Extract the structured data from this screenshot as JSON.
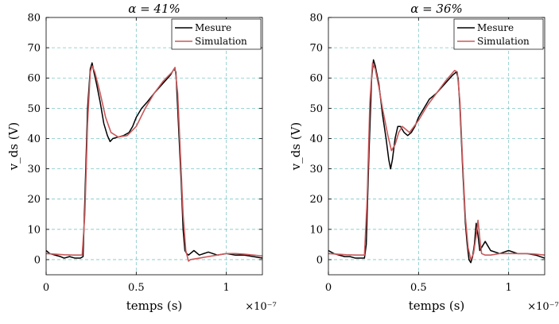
{
  "chart_data": [
    {
      "type": "line",
      "title": "α = 41%",
      "xlabel": "temps (s)",
      "ylabel": "v_ds (V)",
      "x_multiplier_label": "×10⁻⁷",
      "xlim": [
        0,
        1.2
      ],
      "ylim": [
        -5,
        80
      ],
      "xticks": [
        "0",
        "0.5",
        "1"
      ],
      "yticks": [
        "0",
        "10",
        "20",
        "30",
        "40",
        "50",
        "60",
        "70",
        "80"
      ],
      "grid": true,
      "legend": "top-right",
      "series": [
        {
          "name": "Mesure",
          "color": "#000000",
          "x": [
            0,
            0.02,
            0.05,
            0.08,
            0.1,
            0.13,
            0.16,
            0.19,
            0.205,
            0.215,
            0.23,
            0.245,
            0.255,
            0.265,
            0.28,
            0.3,
            0.32,
            0.34,
            0.355,
            0.37,
            0.4,
            0.43,
            0.46,
            0.48,
            0.5,
            0.53,
            0.56,
            0.6,
            0.63,
            0.66,
            0.69,
            0.71,
            0.72,
            0.73,
            0.75,
            0.76,
            0.77,
            0.78,
            0.79,
            0.8,
            0.82,
            0.85,
            0.9,
            0.95,
            1.0,
            1.05,
            1.1,
            1.15,
            1.2
          ],
          "y": [
            3,
            2,
            1.5,
            1,
            0.5,
            1,
            0.5,
            0.5,
            1,
            20,
            50,
            63,
            65,
            62,
            58,
            52,
            45,
            41,
            39,
            40,
            40.5,
            41,
            42,
            44,
            47,
            50,
            52,
            55,
            57,
            59,
            61,
            63,
            62,
            50,
            25,
            10,
            3,
            2,
            1.5,
            2,
            3,
            1.5,
            2.5,
            1.5,
            2,
            1.5,
            1.5,
            1,
            0.5
          ]
        },
        {
          "name": "Simulation",
          "color": "#c8595b",
          "x": [
            0,
            0.05,
            0.1,
            0.15,
            0.2,
            0.215,
            0.23,
            0.245,
            0.255,
            0.27,
            0.3,
            0.33,
            0.36,
            0.4,
            0.45,
            0.5,
            0.55,
            0.6,
            0.65,
            0.7,
            0.715,
            0.73,
            0.745,
            0.76,
            0.775,
            0.79,
            0.8,
            0.85,
            0.9,
            0.95,
            1.0,
            1.05,
            1.1,
            1.15,
            1.2
          ],
          "y": [
            2,
            1.8,
            1.6,
            1.5,
            1.5,
            15,
            45,
            62,
            64,
            62,
            55,
            47,
            42,
            40.5,
            41,
            44,
            50,
            55,
            59,
            62,
            63.5,
            55,
            35,
            15,
            3,
            -0.5,
            0,
            0.5,
            1,
            1.5,
            2,
            2,
            1.8,
            1.5,
            1.2
          ]
        }
      ]
    },
    {
      "type": "line",
      "title": "α = 36%",
      "xlabel": "temps (s)",
      "ylabel": "v_ds (V)",
      "x_multiplier_label": "×10⁻⁷",
      "xlim": [
        0,
        1.2
      ],
      "ylim": [
        -5,
        80
      ],
      "xticks": [
        "0",
        "0.5",
        "1"
      ],
      "yticks": [
        "0",
        "10",
        "20",
        "30",
        "40",
        "50",
        "60",
        "70",
        "80"
      ],
      "grid": true,
      "legend": "top-right",
      "series": [
        {
          "name": "Mesure",
          "color": "#000000",
          "x": [
            0,
            0.03,
            0.06,
            0.09,
            0.12,
            0.15,
            0.18,
            0.2,
            0.21,
            0.225,
            0.24,
            0.25,
            0.26,
            0.28,
            0.3,
            0.32,
            0.335,
            0.345,
            0.355,
            0.37,
            0.385,
            0.4,
            0.42,
            0.44,
            0.46,
            0.48,
            0.5,
            0.53,
            0.56,
            0.6,
            0.63,
            0.66,
            0.69,
            0.71,
            0.72,
            0.73,
            0.745,
            0.76,
            0.77,
            0.78,
            0.79,
            0.8,
            0.81,
            0.82,
            0.83,
            0.84,
            0.85,
            0.87,
            0.9,
            0.95,
            1.0,
            1.05,
            1.1,
            1.15,
            1.2
          ],
          "y": [
            3,
            2,
            1.5,
            1,
            1,
            0.5,
            0.5,
            0.5,
            5,
            35,
            60,
            66,
            64,
            58,
            48,
            40,
            33,
            30,
            33,
            40,
            44,
            44,
            42,
            41,
            42,
            44,
            47,
            50,
            53,
            55,
            57,
            59,
            61,
            62,
            60,
            50,
            30,
            12,
            5,
            0,
            -1,
            1,
            5,
            12,
            8,
            3,
            4,
            6,
            3,
            2,
            3,
            2,
            2,
            1.5,
            0.5
          ]
        },
        {
          "name": "Simulation",
          "color": "#c8595b",
          "x": [
            0,
            0.05,
            0.1,
            0.15,
            0.2,
            0.215,
            0.23,
            0.245,
            0.26,
            0.28,
            0.3,
            0.33,
            0.35,
            0.37,
            0.39,
            0.41,
            0.43,
            0.45,
            0.5,
            0.55,
            0.6,
            0.65,
            0.7,
            0.715,
            0.73,
            0.745,
            0.76,
            0.775,
            0.79,
            0.805,
            0.82,
            0.83,
            0.84,
            0.85,
            0.87,
            0.9,
            0.95,
            1.0,
            1.05,
            1.1,
            1.15,
            1.2
          ],
          "y": [
            2,
            1.8,
            1.6,
            1.5,
            1.5,
            20,
            52,
            65,
            63,
            57,
            50,
            41,
            36,
            38,
            42,
            44,
            43,
            42,
            46,
            51,
            55,
            59,
            62.5,
            62,
            52,
            32,
            14,
            4,
            0,
            2,
            8,
            13,
            7,
            2,
            1.5,
            1.5,
            2,
            2,
            2,
            2,
            1.8,
            1.5
          ]
        }
      ]
    }
  ]
}
